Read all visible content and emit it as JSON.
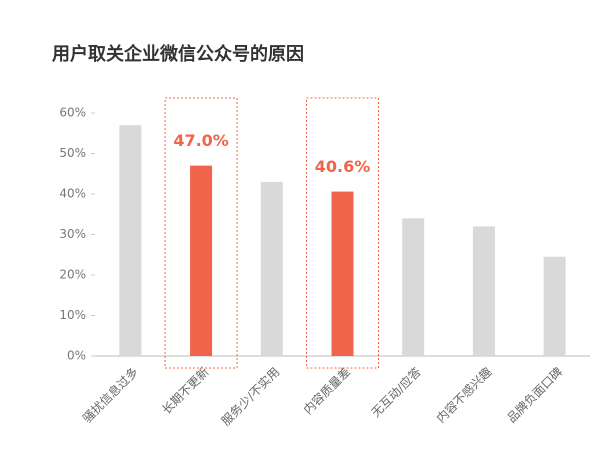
{
  "chart_data": {
    "type": "bar",
    "title": "用户取关企业微信公众号的原因",
    "categories": [
      "骚扰信息过多",
      "长期不更新",
      "服务少/不实用",
      "内容质量差",
      "无互动/应答",
      "内容不感兴趣",
      "品牌负面口碑"
    ],
    "values": [
      57,
      47.0,
      43,
      40.6,
      34,
      32,
      24.5
    ],
    "value_labels": [
      null,
      "47.0%",
      null,
      "40.6%",
      null,
      null,
      null
    ],
    "colors": [
      "#d9d9d9",
      "#f0654a",
      "#d9d9d9",
      "#f0654a",
      "#d9d9d9",
      "#d9d9d9",
      "#d9d9d9"
    ],
    "ylim": [
      0,
      60
    ],
    "yticks": [
      {
        "value": 0,
        "label": "0%"
      },
      {
        "value": 10,
        "label": "10%"
      },
      {
        "value": 20,
        "label": "20%"
      },
      {
        "value": 30,
        "label": "30%"
      },
      {
        "value": 40,
        "label": "40%"
      },
      {
        "value": 50,
        "label": "50%"
      },
      {
        "value": 60,
        "label": "60%"
      }
    ]
  }
}
